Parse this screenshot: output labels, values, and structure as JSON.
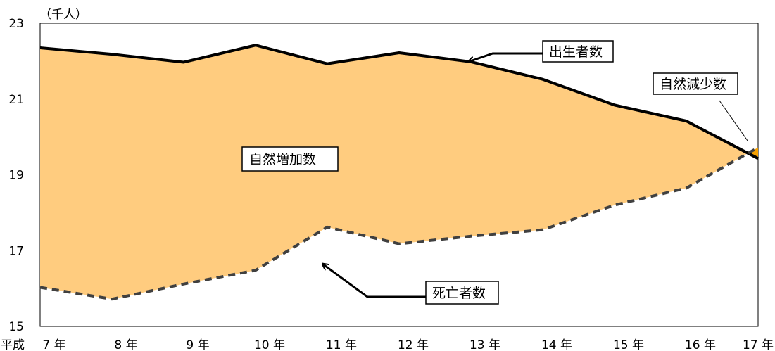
{
  "chart_data": {
    "type": "area",
    "unit_label": "（千人）",
    "x_prefix": "平成",
    "categories": [
      "7 年",
      "8 年",
      "9 年",
      "10 年",
      "11 年",
      "12 年",
      "13 年",
      "14 年",
      "15 年",
      "16 年",
      "17 年"
    ],
    "y_ticks": [
      "15",
      "17",
      "19",
      "21",
      "23"
    ],
    "ylim": [
      15,
      23
    ],
    "series": [
      {
        "name": "出生者数",
        "values": [
          22.35,
          22.18,
          21.97,
          22.42,
          21.93,
          22.22,
          21.98,
          21.52,
          20.84,
          20.42,
          19.43
        ]
      },
      {
        "name": "死亡者数",
        "values": [
          16.03,
          15.72,
          16.12,
          16.48,
          17.62,
          17.18,
          17.38,
          17.55,
          18.2,
          18.65,
          19.72
        ]
      }
    ],
    "annotations": {
      "increase": "自然増加数",
      "decrease": "自然減少数"
    },
    "colors": {
      "fill": "#ffcc7f",
      "decrease_fill": "#f5a000",
      "line": "#000000",
      "dash": "#404040"
    }
  }
}
